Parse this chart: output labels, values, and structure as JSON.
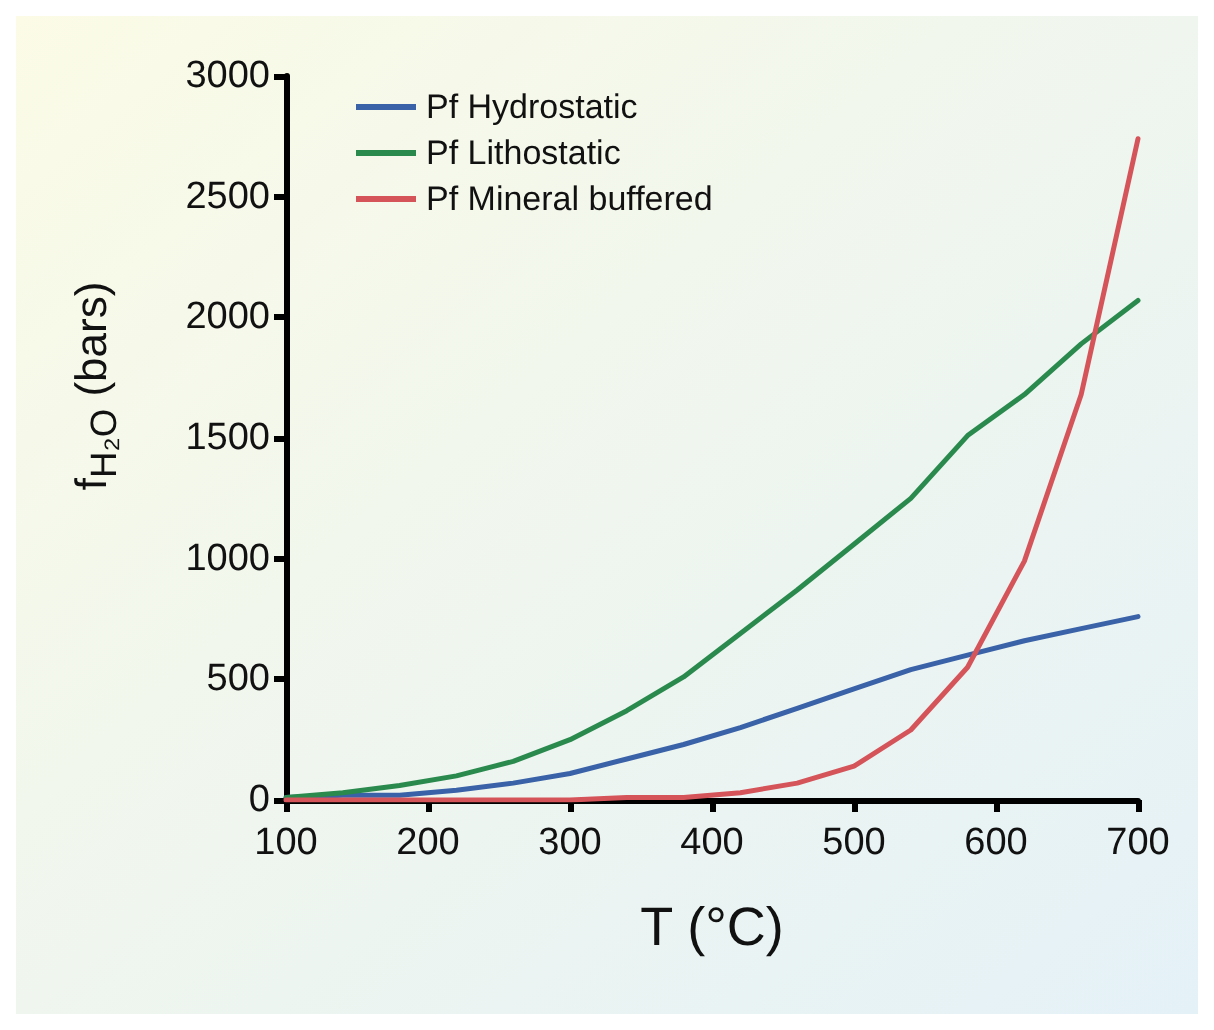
{
  "chart_data": {
    "type": "line",
    "xlabel": "T (°C)",
    "ylabel": "f$_{H₂O}$ (bars)",
    "x": [
      100,
      140,
      180,
      220,
      260,
      300,
      340,
      380,
      420,
      460,
      500,
      540,
      580,
      620,
      660,
      700
    ],
    "series": [
      {
        "name": "Pf Hydrostatic",
        "color": "#3a62a8",
        "values": [
          10,
          20,
          20,
          40,
          70,
          110,
          170,
          230,
          300,
          380,
          460,
          540,
          600,
          660,
          710,
          760
        ]
      },
      {
        "name": "Pf Lithostatic",
        "color": "#2a8a4e",
        "values": [
          10,
          30,
          60,
          100,
          160,
          250,
          370,
          510,
          690,
          870,
          1060,
          1250,
          1510,
          1680,
          1890,
          2070
        ]
      },
      {
        "name": "Pf Mineral buffered",
        "color": "#d5545a",
        "values": [
          0,
          0,
          0,
          0,
          0,
          0,
          10,
          10,
          30,
          70,
          140,
          290,
          550,
          990,
          1680,
          2740
        ]
      }
    ],
    "xlim": [
      100,
      700
    ],
    "xticks": [
      100,
      200,
      300,
      400,
      500,
      600,
      700
    ],
    "ylim": [
      0,
      3000
    ],
    "yticks": [
      0,
      500,
      1000,
      1500,
      2000,
      2500,
      3000
    ],
    "grid": false,
    "legend": "top left",
    "marker": "none",
    "line_style": "solid"
  }
}
